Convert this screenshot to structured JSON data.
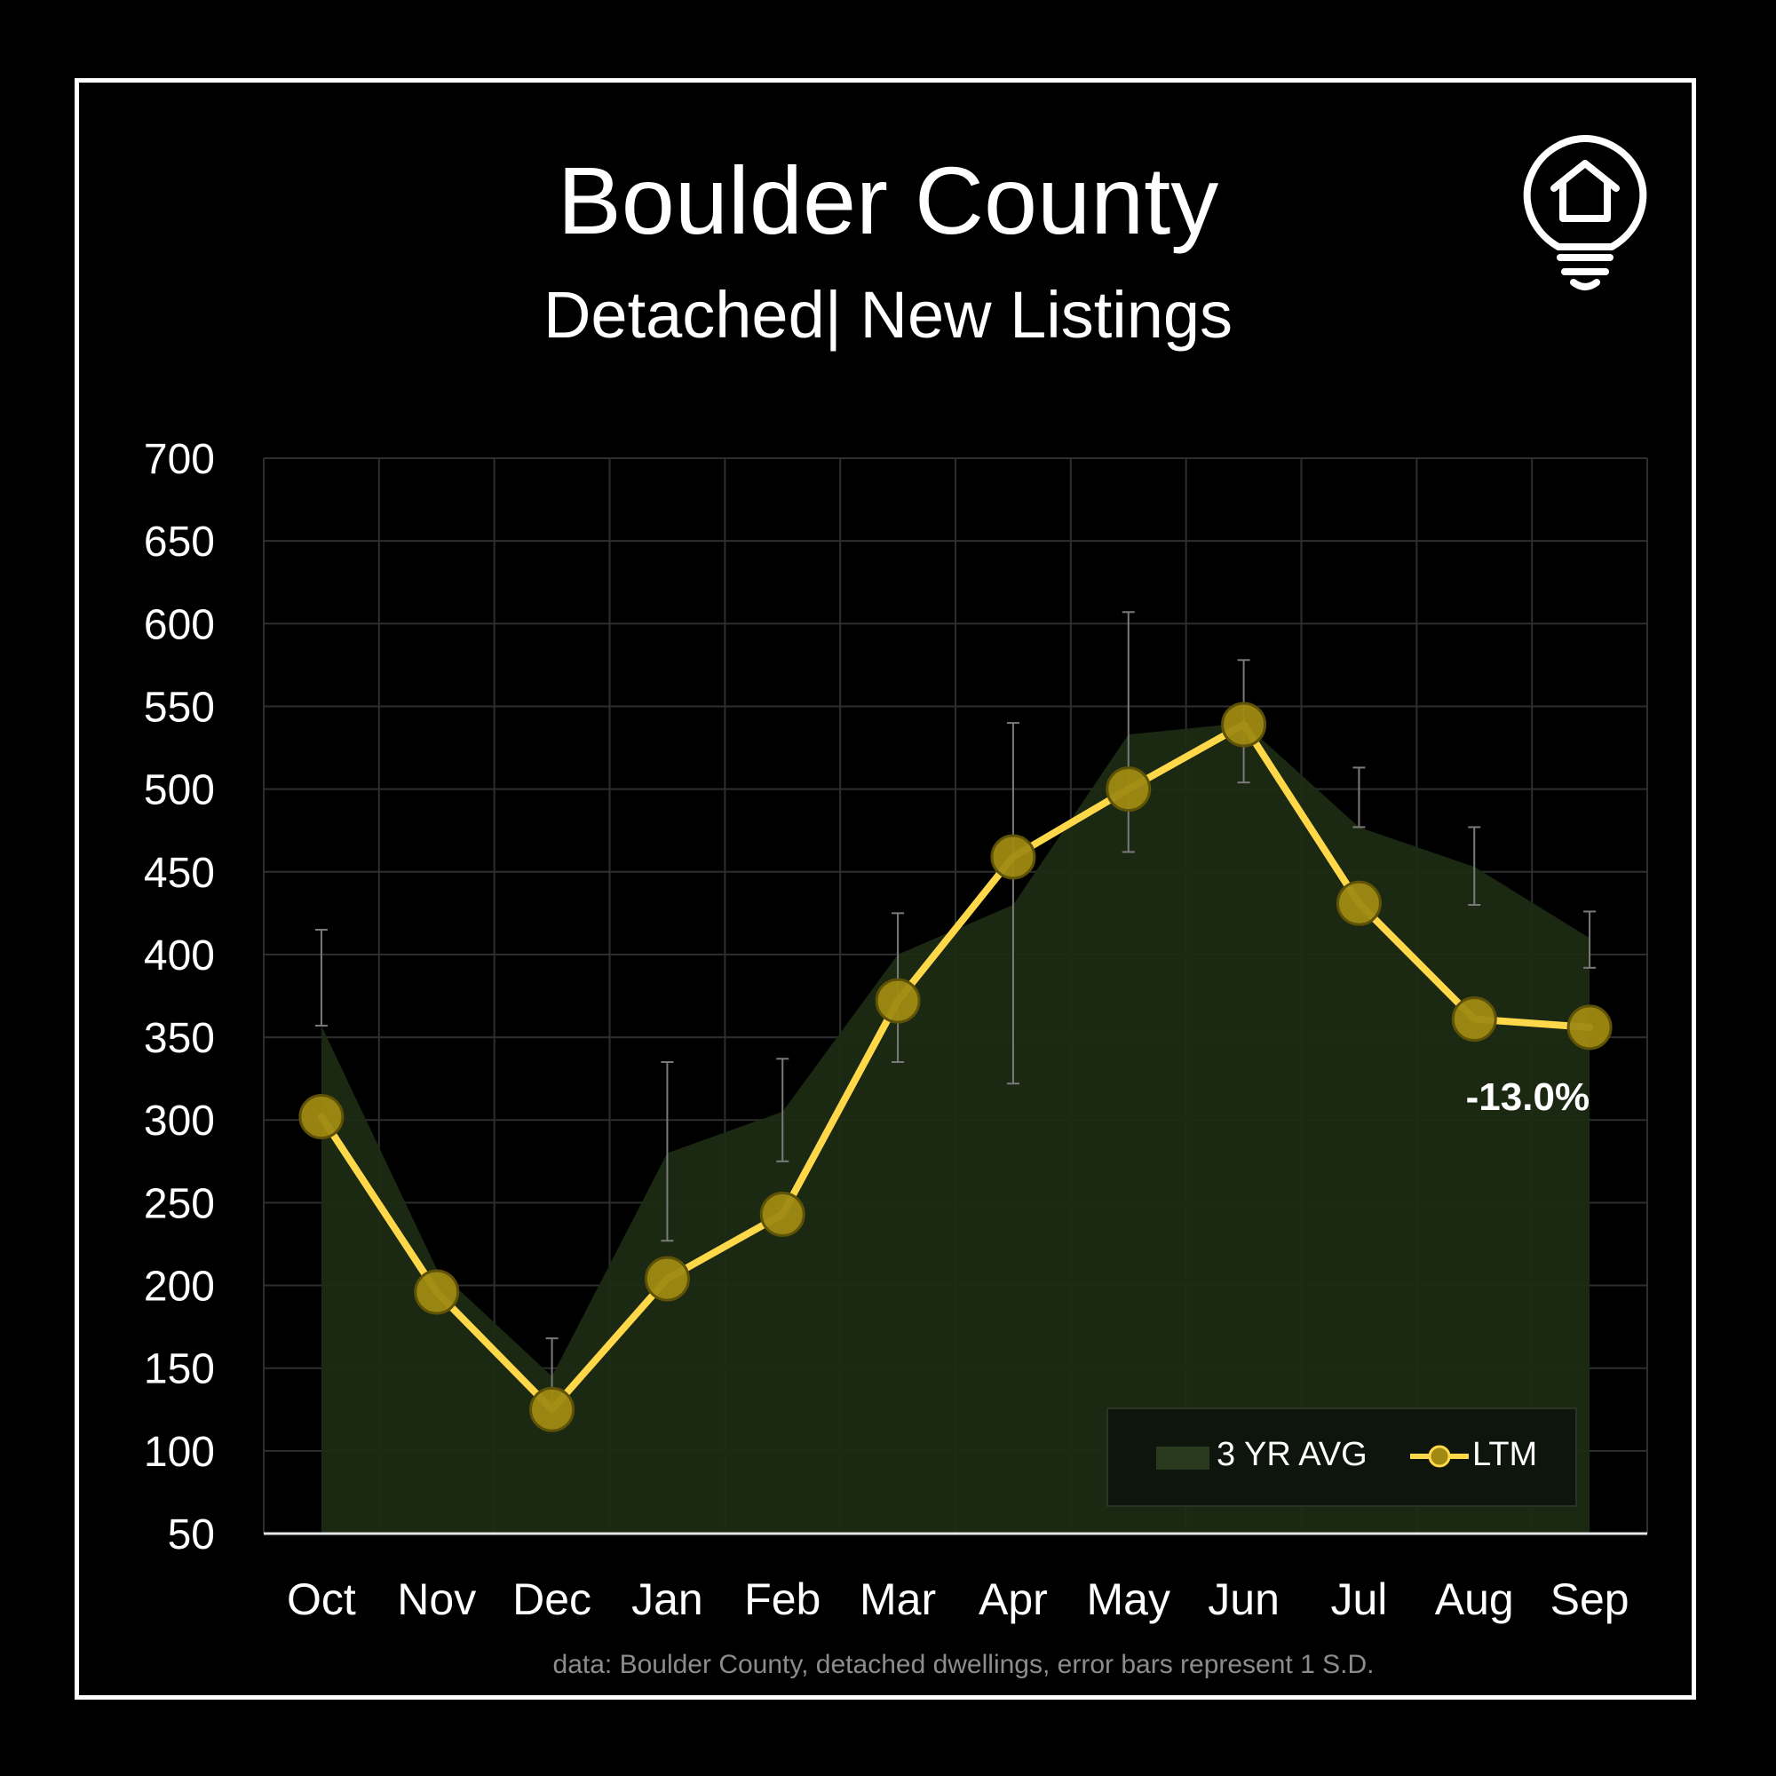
{
  "header": {
    "title": "Boulder County",
    "subtitle": "Detached| New Listings"
  },
  "icons": {
    "logo": "house-lightbulb-icon"
  },
  "colors": {
    "background": "#000000",
    "area": "#1d2b14",
    "line": "#ffd84a",
    "marker": "#a08a12",
    "grid": "#2e2e2e"
  },
  "footnote": "data: Boulder County, detached dwellings, error bars represent 1 S.D.",
  "annotation": "-13.0%",
  "chart_data": {
    "type": "line",
    "categories": [
      "Oct",
      "Nov",
      "Dec",
      "Jan",
      "Feb",
      "Mar",
      "Apr",
      "May",
      "Jun",
      "Jul",
      "Aug",
      "Sep"
    ],
    "ylim": [
      50,
      700
    ],
    "yticks": [
      700,
      650,
      600,
      550,
      500,
      450,
      400,
      350,
      300,
      250,
      200,
      150,
      100,
      50
    ],
    "grid": true,
    "legend_position": "bottom-right",
    "series": [
      {
        "name": "3 YR AVG",
        "type": "area",
        "values": [
          357,
          210,
          145,
          280,
          305,
          400,
          430,
          533,
          540,
          477,
          453,
          410
        ],
        "error_low": [
          357,
          210,
          125,
          227,
          275,
          335,
          322,
          462,
          504,
          477,
          430,
          392
        ],
        "error_high": [
          415,
          210,
          168,
          335,
          337,
          425,
          540,
          607,
          578,
          513,
          477,
          426
        ]
      },
      {
        "name": "LTM",
        "type": "line",
        "values": [
          302,
          196,
          125,
          204,
          243,
          372,
          459,
          500,
          539,
          431,
          361,
          356
        ]
      }
    ]
  }
}
